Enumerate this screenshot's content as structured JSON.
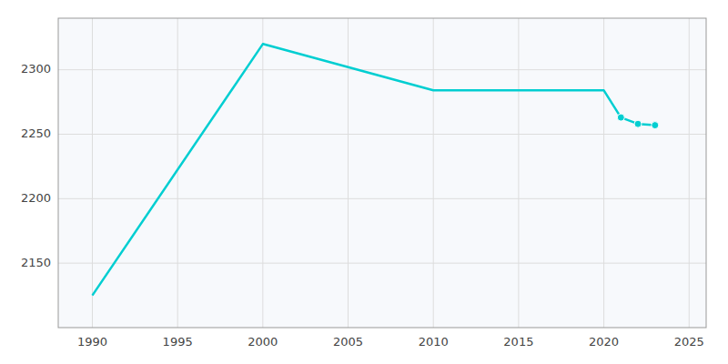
{
  "chart_data": {
    "type": "line",
    "series": [
      {
        "x": [
          1990,
          2000,
          2010,
          2020,
          2021,
          2022,
          2023
        ],
        "values": [
          2125,
          2320,
          2284,
          2284,
          2263,
          2258,
          2257
        ],
        "color": "#00CED1"
      },
      {
        "type": "scatter",
        "x": [
          2021,
          2022,
          2023
        ],
        "values": [
          2263,
          2258,
          2257
        ],
        "color": "#00CED1",
        "marker": "circle"
      }
    ],
    "xlim": [
      1988,
      2026
    ],
    "ylim": [
      2100,
      2340
    ],
    "xticks": [
      1990,
      1995,
      2000,
      2005,
      2010,
      2015,
      2020,
      2025
    ],
    "yticks": [
      2150,
      2200,
      2250,
      2300
    ],
    "grid": true
  }
}
